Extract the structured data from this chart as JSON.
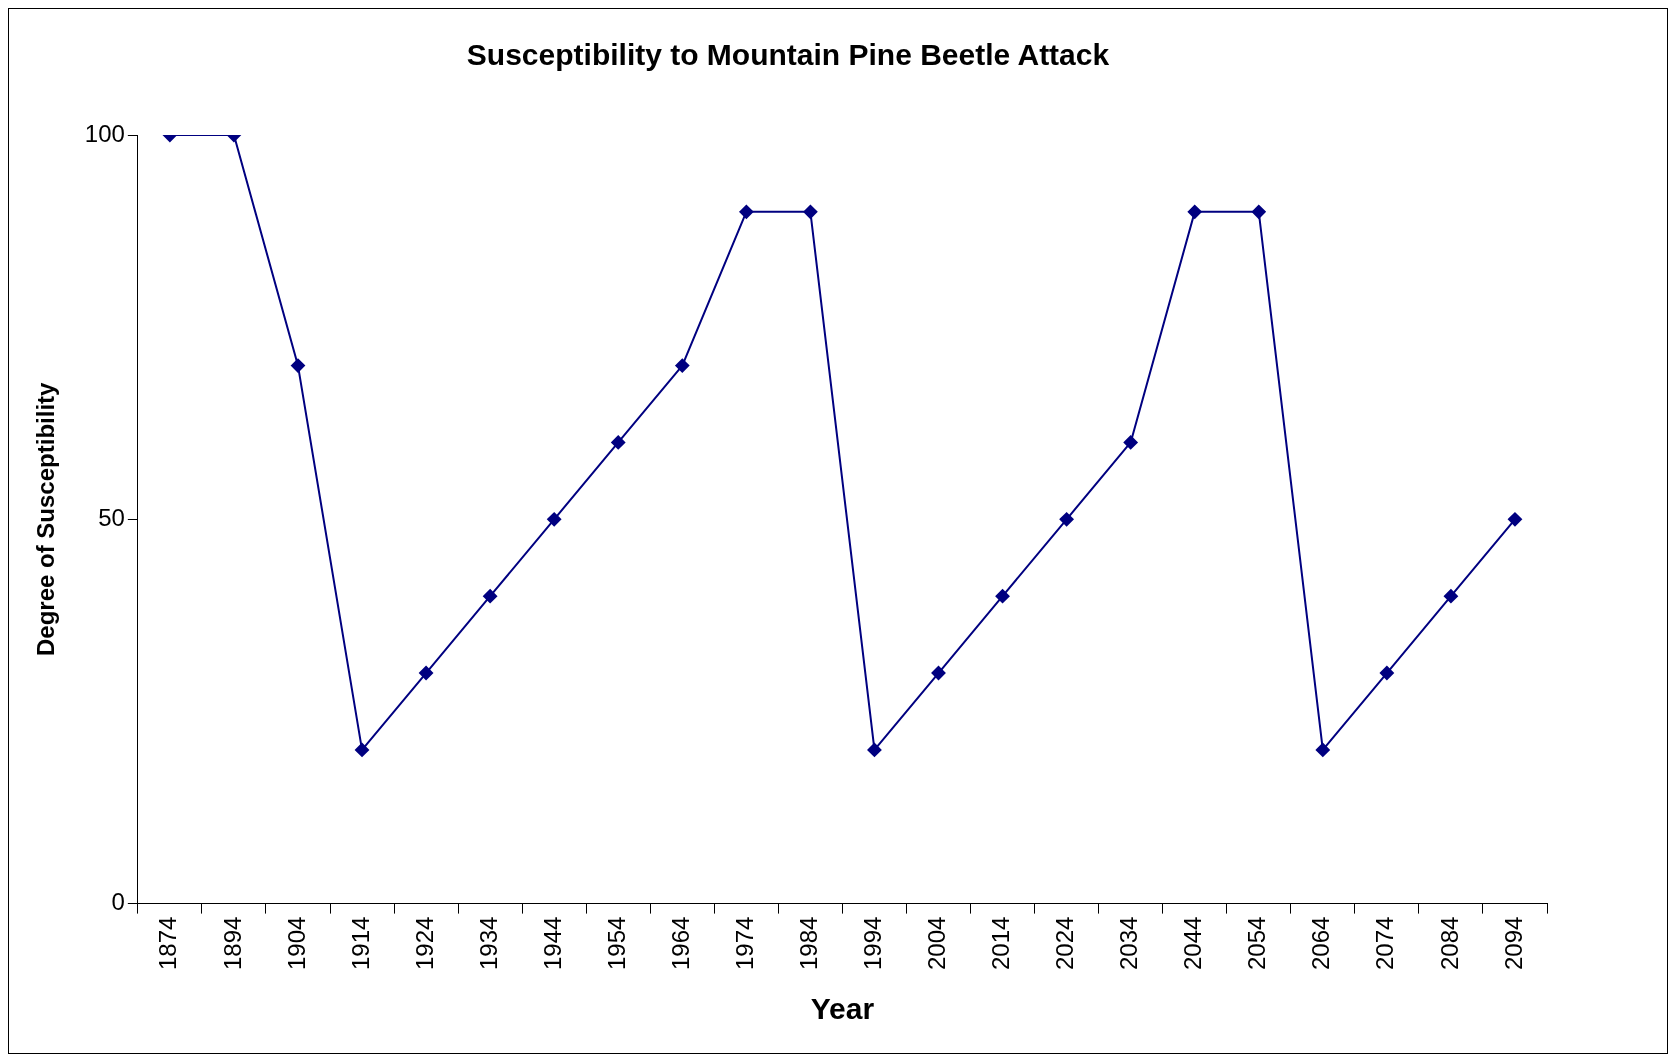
{
  "chart_data": {
    "type": "line",
    "title": "Susceptibility to Mountain Pine Beetle Attack",
    "xlabel": "Year",
    "ylabel": "Degree of Susceptibility",
    "categories": [
      "1874",
      "1894",
      "1904",
      "1914",
      "1924",
      "1934",
      "1944",
      "1954",
      "1964",
      "1974",
      "1984",
      "1994",
      "2004",
      "2014",
      "2024",
      "2034",
      "2044",
      "2054",
      "2064",
      "2074",
      "2084",
      "2094"
    ],
    "series": [
      {
        "color": "#000080",
        "values": [
          100,
          100,
          70,
          20,
          30,
          40,
          50,
          60,
          70,
          90,
          90,
          20,
          30,
          40,
          50,
          60,
          90,
          90,
          20,
          30,
          40,
          50
        ]
      }
    ],
    "ylim": [
      0,
      100
    ],
    "yticks": [
      0,
      50,
      100
    ],
    "grid": false,
    "legend": false,
    "marker": "diamond",
    "line_style": "solid"
  }
}
